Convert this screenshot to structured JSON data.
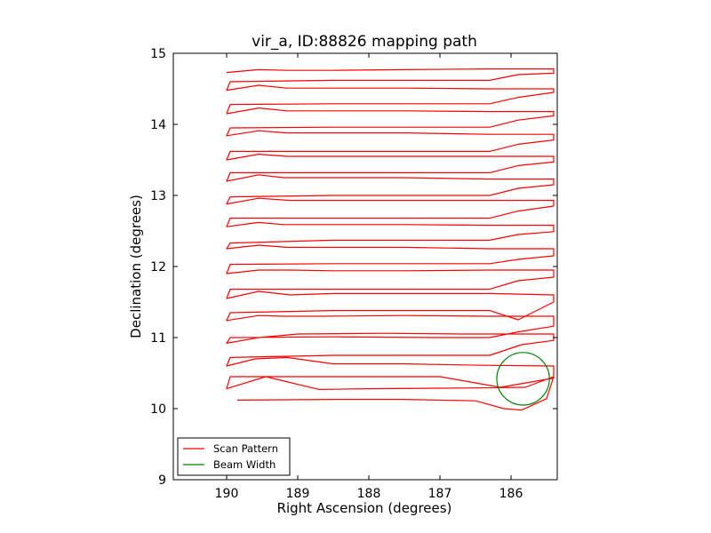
{
  "chart_data": {
    "type": "line",
    "title": "vir_a, ID:88826 mapping path",
    "xlabel": "Right Ascension (degrees)",
    "ylabel": "Declination (degrees)",
    "xlim": [
      190.75,
      185.35
    ],
    "ylim": [
      9,
      15
    ],
    "x_inverted": true,
    "xticks": [
      190,
      189,
      188,
      187,
      186
    ],
    "yticks": [
      9,
      10,
      11,
      12,
      13,
      14,
      15
    ],
    "xtick_labels": [
      "190",
      "189",
      "188",
      "187",
      "186"
    ],
    "ytick_labels": [
      "9",
      "10",
      "11",
      "12",
      "13",
      "14",
      "15"
    ],
    "grid": false,
    "legend": {
      "position": "lower-left"
    },
    "series": [
      {
        "name": "Scan Pattern",
        "color": "#ff0000",
        "type": "line",
        "points": [
          [
            189.85,
            10.12
          ],
          [
            188.5,
            10.13
          ],
          [
            187.5,
            10.13
          ],
          [
            186.5,
            10.11
          ],
          [
            186.1,
            10.0
          ],
          [
            185.85,
            9.98
          ],
          [
            185.5,
            10.14
          ],
          [
            185.4,
            10.45
          ],
          [
            185.8,
            10.3
          ],
          [
            186.7,
            10.29
          ],
          [
            188.0,
            10.28
          ],
          [
            188.7,
            10.27
          ],
          [
            189.45,
            10.45
          ],
          [
            190.0,
            10.28
          ],
          [
            189.95,
            10.45
          ],
          [
            188.5,
            10.45
          ],
          [
            187.0,
            10.45
          ],
          [
            186.15,
            10.3
          ],
          [
            185.4,
            10.43
          ],
          [
            185.4,
            10.6
          ],
          [
            186.4,
            10.61
          ],
          [
            187.5,
            10.63
          ],
          [
            188.5,
            10.63
          ],
          [
            189.15,
            10.72
          ],
          [
            189.6,
            10.7
          ],
          [
            190.0,
            10.6
          ],
          [
            189.95,
            10.72
          ],
          [
            188.5,
            10.75
          ],
          [
            187.0,
            10.75
          ],
          [
            186.3,
            10.75
          ],
          [
            185.85,
            10.9
          ],
          [
            185.4,
            10.96
          ],
          [
            185.4,
            11.05
          ],
          [
            186.7,
            11.05
          ],
          [
            187.8,
            11.06
          ],
          [
            189.0,
            11.05
          ],
          [
            189.55,
            11.0
          ],
          [
            190.0,
            10.92
          ],
          [
            189.95,
            11.0
          ],
          [
            188.5,
            11.01
          ],
          [
            187.0,
            11.0
          ],
          [
            186.3,
            11.0
          ],
          [
            185.9,
            11.08
          ],
          [
            185.4,
            11.16
          ],
          [
            185.4,
            11.3
          ],
          [
            186.3,
            11.3
          ],
          [
            187.5,
            11.31
          ],
          [
            188.7,
            11.3
          ],
          [
            189.2,
            11.3
          ],
          [
            189.55,
            11.31
          ],
          [
            190.0,
            11.24
          ],
          [
            189.95,
            11.35
          ],
          [
            188.5,
            11.38
          ],
          [
            187.0,
            11.38
          ],
          [
            186.3,
            11.38
          ],
          [
            185.9,
            11.25
          ],
          [
            185.4,
            11.5
          ],
          [
            185.4,
            11.6
          ],
          [
            186.3,
            11.62
          ],
          [
            187.5,
            11.62
          ],
          [
            188.5,
            11.62
          ],
          [
            189.1,
            11.6
          ],
          [
            189.55,
            11.65
          ],
          [
            190.0,
            11.55
          ],
          [
            189.95,
            11.68
          ],
          [
            188.5,
            11.68
          ],
          [
            187.0,
            11.68
          ],
          [
            186.3,
            11.68
          ],
          [
            185.9,
            11.8
          ],
          [
            185.4,
            11.85
          ],
          [
            185.4,
            11.95
          ],
          [
            186.3,
            11.95
          ],
          [
            187.5,
            11.94
          ],
          [
            188.5,
            11.94
          ],
          [
            189.1,
            11.95
          ],
          [
            189.55,
            11.95
          ],
          [
            190.0,
            11.9
          ],
          [
            189.95,
            12.03
          ],
          [
            188.5,
            12.04
          ],
          [
            187.0,
            12.04
          ],
          [
            186.3,
            12.04
          ],
          [
            185.9,
            12.1
          ],
          [
            185.4,
            12.15
          ],
          [
            185.4,
            12.25
          ],
          [
            186.3,
            12.25
          ],
          [
            187.5,
            12.27
          ],
          [
            188.5,
            12.27
          ],
          [
            189.15,
            12.27
          ],
          [
            189.55,
            12.3
          ],
          [
            190.0,
            12.25
          ],
          [
            189.95,
            12.33
          ],
          [
            188.5,
            12.37
          ],
          [
            187.0,
            12.37
          ],
          [
            186.3,
            12.37
          ],
          [
            185.9,
            12.45
          ],
          [
            185.4,
            12.49
          ],
          [
            185.4,
            12.58
          ],
          [
            186.3,
            12.58
          ],
          [
            187.5,
            12.59
          ],
          [
            188.5,
            12.59
          ],
          [
            189.2,
            12.59
          ],
          [
            189.55,
            12.62
          ],
          [
            190.0,
            12.56
          ],
          [
            189.95,
            12.68
          ],
          [
            188.5,
            12.68
          ],
          [
            187.0,
            12.68
          ],
          [
            186.3,
            12.68
          ],
          [
            185.9,
            12.78
          ],
          [
            185.4,
            12.85
          ],
          [
            185.4,
            12.93
          ],
          [
            186.3,
            12.93
          ],
          [
            187.5,
            12.93
          ],
          [
            188.5,
            12.93
          ],
          [
            189.1,
            12.93
          ],
          [
            189.55,
            12.96
          ],
          [
            190.0,
            12.88
          ],
          [
            189.95,
            12.98
          ],
          [
            188.5,
            13.0
          ],
          [
            187.0,
            13.0
          ],
          [
            186.3,
            13.0
          ],
          [
            185.9,
            13.1
          ],
          [
            185.4,
            13.15
          ],
          [
            185.4,
            13.23
          ],
          [
            186.3,
            13.23
          ],
          [
            187.5,
            13.25
          ],
          [
            188.5,
            13.25
          ],
          [
            189.2,
            13.25
          ],
          [
            189.55,
            13.29
          ],
          [
            190.0,
            13.2
          ],
          [
            189.95,
            13.32
          ],
          [
            188.5,
            13.32
          ],
          [
            187.0,
            13.32
          ],
          [
            186.3,
            13.32
          ],
          [
            185.9,
            13.42
          ],
          [
            185.4,
            13.47
          ],
          [
            185.4,
            13.55
          ],
          [
            186.3,
            13.55
          ],
          [
            187.5,
            13.55
          ],
          [
            188.5,
            13.55
          ],
          [
            189.15,
            13.55
          ],
          [
            189.55,
            13.58
          ],
          [
            190.0,
            13.5
          ],
          [
            189.95,
            13.62
          ],
          [
            188.5,
            13.62
          ],
          [
            187.0,
            13.62
          ],
          [
            186.3,
            13.62
          ],
          [
            185.9,
            13.72
          ],
          [
            185.4,
            13.78
          ],
          [
            185.4,
            13.86
          ],
          [
            186.3,
            13.86
          ],
          [
            187.5,
            13.88
          ],
          [
            188.5,
            13.88
          ],
          [
            189.15,
            13.88
          ],
          [
            189.55,
            13.91
          ],
          [
            190.0,
            13.84
          ],
          [
            189.95,
            13.95
          ],
          [
            188.5,
            13.96
          ],
          [
            187.0,
            13.96
          ],
          [
            186.3,
            13.96
          ],
          [
            185.9,
            14.06
          ],
          [
            185.4,
            14.12
          ],
          [
            185.4,
            14.18
          ],
          [
            186.3,
            14.18
          ],
          [
            187.5,
            14.19
          ],
          [
            188.5,
            14.19
          ],
          [
            189.15,
            14.19
          ],
          [
            189.55,
            14.23
          ],
          [
            190.0,
            14.15
          ],
          [
            189.95,
            14.28
          ],
          [
            188.5,
            14.29
          ],
          [
            187.0,
            14.29
          ],
          [
            186.3,
            14.29
          ],
          [
            185.9,
            14.38
          ],
          [
            185.4,
            14.45
          ],
          [
            185.4,
            14.5
          ],
          [
            186.3,
            14.5
          ],
          [
            187.5,
            14.51
          ],
          [
            188.5,
            14.51
          ],
          [
            189.15,
            14.51
          ],
          [
            189.55,
            14.55
          ],
          [
            190.0,
            14.48
          ],
          [
            189.95,
            14.6
          ],
          [
            188.5,
            14.62
          ],
          [
            187.0,
            14.62
          ],
          [
            186.3,
            14.62
          ],
          [
            185.9,
            14.7
          ],
          [
            185.4,
            14.72
          ],
          [
            185.4,
            14.78
          ],
          [
            186.3,
            14.78
          ],
          [
            187.5,
            14.77
          ],
          [
            188.5,
            14.76
          ],
          [
            189.15,
            14.76
          ],
          [
            189.55,
            14.77
          ],
          [
            190.0,
            14.73
          ]
        ]
      },
      {
        "name": "Beam Width",
        "color": "#008000",
        "type": "circle",
        "center": [
          185.83,
          10.42
        ],
        "radius": 0.37
      }
    ]
  }
}
